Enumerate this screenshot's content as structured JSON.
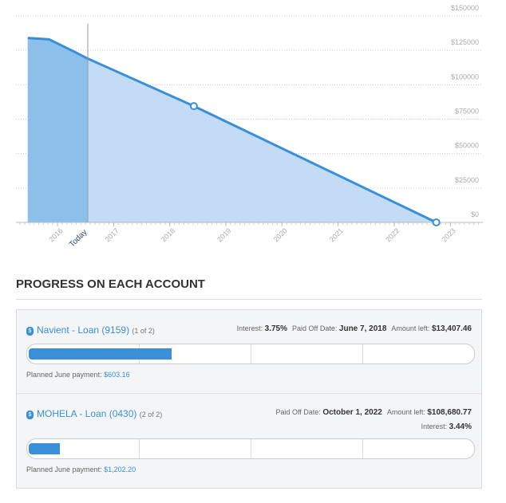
{
  "chart_data": {
    "type": "area",
    "x": [
      2015.47,
      2015.85,
      2016.1,
      2016.3,
      2016.54,
      2018.43,
      2022.75
    ],
    "series": [
      {
        "color": "#3a8fd9",
        "values": [
          134000,
          133000,
          128000,
          124000,
          119000,
          84500,
          0
        ]
      }
    ],
    "markers": [
      {
        "x": 2018.43,
        "y": 84500
      },
      {
        "x": 2022.75,
        "y": 0
      }
    ],
    "today": {
      "x": 2016.54,
      "label": "Today"
    },
    "xlim": [
      2015.26,
      2023.58
    ],
    "xticks": [
      2016,
      2017,
      2018,
      2019,
      2020,
      2021,
      2022,
      2023
    ],
    "ylim": [
      0,
      150000
    ],
    "yticks": [
      {
        "value": 0,
        "label": "$0"
      },
      {
        "value": 25000,
        "label": "$25000"
      },
      {
        "value": 50000,
        "label": "$50000"
      },
      {
        "value": 75000,
        "label": "$75000"
      },
      {
        "value": 100000,
        "label": "$100000"
      },
      {
        "value": 125000,
        "label": "$125000"
      },
      {
        "value": 150000,
        "label": "$150000"
      }
    ],
    "grid": true
  },
  "progress": {
    "title": "PROGRESS ON EACH ACCOUNT",
    "accounts": [
      {
        "name": "Navient - Loan (9159)",
        "position": "(1 of 2)",
        "interest_label": "Interest:",
        "interest": "3.75%",
        "paid_off_label": "Paid Off Date:",
        "paid_off": "June 7, 2018",
        "amount_label": "Amount left:",
        "amount": "$13,407.46",
        "progress": 32,
        "planned_label": "Planned June payment:",
        "planned": "$603.16"
      },
      {
        "name": "MOHELA - Loan (0430)",
        "position": "(2 of 2)",
        "interest_label": "Interest:",
        "interest": "3.44%",
        "paid_off_label": "Paid Off Date:",
        "paid_off": "October 1, 2022",
        "amount_label": "Amount left:",
        "amount": "$108,680.77",
        "progress": 7,
        "planned_label": "Planned June payment:",
        "planned": "$1,202.20"
      }
    ]
  }
}
